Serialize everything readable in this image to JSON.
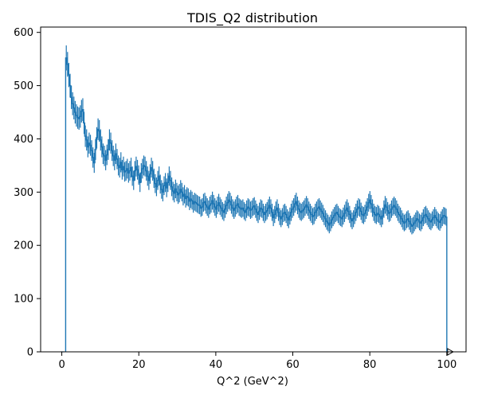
{
  "chart_data": {
    "type": "histogram",
    "title": "TDIS_Q2 distribution",
    "xlabel": "Q^2 (GeV^2)",
    "ylabel": "",
    "xlim": [
      -5.5,
      105.0
    ],
    "ylim": [
      0,
      610
    ],
    "xticks": [
      0,
      20,
      40,
      60,
      80,
      100
    ],
    "yticks": [
      0,
      100,
      200,
      300,
      400,
      500,
      600
    ],
    "grid": false,
    "color": "#1f77b4",
    "bin_range": [
      1,
      100
    ],
    "bin_width": 0.99,
    "counts": [
      552,
      540,
      520,
      500,
      478,
      466,
      458,
      450,
      444,
      440,
      438,
      442,
      452,
      455,
      430,
      405,
      398,
      385,
      392,
      388,
      378,
      365,
      355,
      380,
      402,
      418,
      415,
      398,
      385,
      372,
      368,
      360,
      370,
      380,
      398,
      392,
      378,
      368,
      360,
      372,
      362,
      350,
      346,
      356,
      342,
      348,
      338,
      340,
      344,
      336,
      340,
      346,
      330,
      322,
      340,
      348,
      342,
      332,
      318,
      336,
      344,
      350,
      348,
      340,
      330,
      322,
      334,
      346,
      340,
      326,
      316,
      310,
      322,
      330,
      315,
      305,
      300,
      312,
      318,
      308,
      318,
      330,
      322,
      310,
      302,
      298,
      306,
      300,
      295,
      298,
      305,
      300,
      292,
      296,
      288,
      292,
      290,
      283,
      287,
      284,
      278,
      282,
      280,
      278,
      276,
      275,
      270,
      272,
      280,
      282,
      276,
      272,
      268,
      275,
      278,
      284,
      278,
      272,
      268,
      275,
      280,
      274,
      270,
      265,
      262,
      268,
      275,
      280,
      285,
      282,
      276,
      270,
      266,
      270,
      275,
      278,
      272,
      270,
      268,
      270,
      265,
      262,
      268,
      272,
      270,
      266,
      268,
      272,
      274,
      268,
      262,
      258,
      264,
      270,
      268,
      262,
      258,
      262,
      265,
      270,
      275,
      270,
      262,
      252,
      258,
      266,
      270,
      262,
      254,
      250,
      254,
      260,
      262,
      258,
      252,
      248,
      255,
      262,
      268,
      272,
      278,
      282,
      275,
      268,
      264,
      262,
      265,
      268,
      272,
      276,
      272,
      266,
      262,
      258,
      254,
      256,
      262,
      266,
      270,
      272,
      268,
      264,
      260,
      254,
      250,
      245,
      242,
      238,
      242,
      248,
      252,
      256,
      260,
      262,
      258,
      254,
      252,
      250,
      255,
      260,
      266,
      270,
      264,
      258,
      250,
      246,
      250,
      256,
      262,
      268,
      272,
      270,
      264,
      258,
      256,
      260,
      266,
      272,
      280,
      285,
      278,
      270,
      262,
      258,
      256,
      260,
      258,
      254,
      250,
      255,
      268,
      276,
      272,
      265,
      260,
      262,
      268,
      272,
      275,
      272,
      268,
      262,
      258,
      255,
      250,
      245,
      242,
      244,
      248,
      250,
      245,
      240,
      236,
      238,
      242,
      246,
      250,
      248,
      244,
      242,
      246,
      252,
      256,
      258,
      254,
      250,
      246,
      244,
      248,
      252,
      256,
      252,
      248,
      245,
      243,
      248,
      252,
      256,
      255,
      253
    ]
  }
}
